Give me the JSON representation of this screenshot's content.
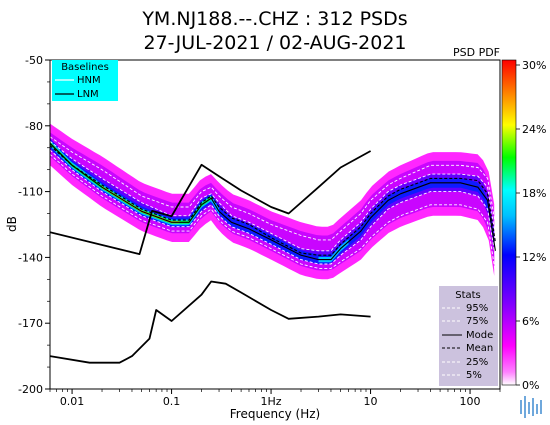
{
  "chart_data": {
    "type": "psd-pdf",
    "title": [
      "YM.NJ188.--.CHZ : 312 PSDs",
      "27-JUL-2021 / 02-AUG-2021"
    ],
    "xlabel": "Frequency (Hz)",
    "ylabel": "dB",
    "x_scale": "log",
    "xlim": [
      0.006,
      200
    ],
    "ylim": [
      -200,
      -50
    ],
    "x_ticks": [
      {
        "value": 0.01,
        "label": "0.01"
      },
      {
        "value": 0.1,
        "label": "0.1"
      },
      {
        "value": 1,
        "label": "1Hz"
      },
      {
        "value": 10,
        "label": "10"
      },
      {
        "value": 100,
        "label": "100"
      }
    ],
    "y_ticks": [
      {
        "value": -50,
        "label": "-50"
      },
      {
        "value": -80,
        "label": "-80"
      },
      {
        "value": -110,
        "label": "-110"
      },
      {
        "value": -140,
        "label": "-140"
      },
      {
        "value": -170,
        "label": "-170"
      },
      {
        "value": -200,
        "label": "-200"
      }
    ],
    "pdf_label": "PSD PDF",
    "colorbar": {
      "ticks": [
        "30%",
        "24%",
        "18%",
        "12%",
        "6%",
        "0%"
      ],
      "stops": [
        "#ffffff",
        "#ff00ff",
        "#8000ff",
        "#0000ff",
        "#00bfff",
        "#00ffff",
        "#00ff00",
        "#ffff00",
        "#ff8000",
        "#ff0000"
      ]
    },
    "baselines": {
      "title": "Baselines",
      "items": [
        "HNM",
        "LNM"
      ],
      "bg": "#00ffff"
    },
    "stats": {
      "title": "Stats",
      "items": [
        "95%",
        "75%",
        "Mode",
        "Mean",
        "25%",
        "5%"
      ],
      "bg": "#ccc2de"
    },
    "series": [
      {
        "name": "HNM",
        "points": [
          [
            0.006,
            -128.5
          ],
          [
            0.0476,
            -138.5
          ],
          [
            0.0637,
            -118.8
          ],
          [
            0.1,
            -121.2
          ],
          [
            0.2,
            -97.8
          ],
          [
            0.3,
            -103
          ],
          [
            0.5,
            -109.5
          ],
          [
            1,
            -117
          ],
          [
            1.5,
            -120
          ],
          [
            3,
            -108
          ],
          [
            5,
            -99
          ],
          [
            10,
            -91.5
          ]
        ]
      },
      {
        "name": "LNM",
        "points": [
          [
            0.006,
            -185
          ],
          [
            0.015,
            -188
          ],
          [
            0.03,
            -188
          ],
          [
            0.04,
            -185
          ],
          [
            0.06,
            -177
          ],
          [
            0.07,
            -164
          ],
          [
            0.1,
            -169
          ],
          [
            0.2,
            -157
          ],
          [
            0.25,
            -151
          ],
          [
            0.35,
            -152
          ],
          [
            0.5,
            -156
          ],
          [
            1,
            -164
          ],
          [
            1.5,
            -168
          ],
          [
            3,
            -167
          ],
          [
            5,
            -166
          ],
          [
            10,
            -167
          ]
        ]
      },
      {
        "name": "Mode",
        "points": [
          [
            0.006,
            -88
          ],
          [
            0.01,
            -98
          ],
          [
            0.02,
            -108
          ],
          [
            0.05,
            -119
          ],
          [
            0.1,
            -124
          ],
          [
            0.15,
            -124
          ],
          [
            0.2,
            -116
          ],
          [
            0.25,
            -113
          ],
          [
            0.3,
            -119
          ],
          [
            0.4,
            -124
          ],
          [
            0.6,
            -127
          ],
          [
            1,
            -132
          ],
          [
            2,
            -139
          ],
          [
            3,
            -141
          ],
          [
            4,
            -141
          ],
          [
            5,
            -136
          ],
          [
            8,
            -128
          ],
          [
            10,
            -122
          ],
          [
            15,
            -114
          ],
          [
            20,
            -111
          ],
          [
            40,
            -106
          ],
          [
            80,
            -106
          ],
          [
            120,
            -108
          ],
          [
            150,
            -114
          ],
          [
            180,
            -137
          ]
        ]
      },
      {
        "name": "Mean",
        "points": [
          [
            0.006,
            -89
          ],
          [
            0.01,
            -98
          ],
          [
            0.02,
            -107
          ],
          [
            0.05,
            -118
          ],
          [
            0.1,
            -123
          ],
          [
            0.15,
            -123
          ],
          [
            0.2,
            -115
          ],
          [
            0.25,
            -112
          ],
          [
            0.3,
            -117
          ],
          [
            0.4,
            -122
          ],
          [
            0.6,
            -125
          ],
          [
            1,
            -131
          ],
          [
            2,
            -138
          ],
          [
            3,
            -139
          ],
          [
            4,
            -139
          ],
          [
            5,
            -134
          ],
          [
            8,
            -126
          ],
          [
            10,
            -120
          ],
          [
            15,
            -112
          ],
          [
            20,
            -109
          ],
          [
            40,
            -104
          ],
          [
            80,
            -104
          ],
          [
            120,
            -105
          ],
          [
            150,
            -111
          ],
          [
            180,
            -133
          ]
        ]
      },
      {
        "name": "95%",
        "points": [
          [
            0.006,
            -85
          ],
          [
            0.01,
            -92
          ],
          [
            0.02,
            -100
          ],
          [
            0.05,
            -112
          ],
          [
            0.1,
            -117
          ],
          [
            0.15,
            -117
          ],
          [
            0.2,
            -110
          ],
          [
            0.25,
            -108
          ],
          [
            0.3,
            -112
          ],
          [
            0.4,
            -117
          ],
          [
            0.6,
            -120
          ],
          [
            1,
            -125
          ],
          [
            2,
            -130
          ],
          [
            3,
            -132
          ],
          [
            4,
            -132
          ],
          [
            5,
            -128
          ],
          [
            8,
            -120
          ],
          [
            10,
            -114
          ],
          [
            15,
            -107
          ],
          [
            20,
            -104
          ],
          [
            40,
            -98
          ],
          [
            80,
            -98
          ],
          [
            120,
            -99
          ],
          [
            150,
            -104
          ],
          [
            180,
            -125
          ]
        ]
      },
      {
        "name": "75%",
        "points": [
          [
            0.006,
            -87
          ],
          [
            0.01,
            -95
          ],
          [
            0.02,
            -104
          ],
          [
            0.05,
            -115
          ],
          [
            0.1,
            -121
          ],
          [
            0.15,
            -121
          ],
          [
            0.2,
            -113
          ],
          [
            0.25,
            -111
          ],
          [
            0.3,
            -115
          ],
          [
            0.4,
            -121
          ],
          [
            0.6,
            -124
          ],
          [
            1,
            -129
          ],
          [
            2,
            -136
          ],
          [
            3,
            -137
          ],
          [
            4,
            -137
          ],
          [
            5,
            -132
          ],
          [
            8,
            -124
          ],
          [
            10,
            -118
          ],
          [
            15,
            -110
          ],
          [
            20,
            -107
          ],
          [
            40,
            -102
          ],
          [
            80,
            -102
          ],
          [
            120,
            -103
          ],
          [
            150,
            -108
          ],
          [
            180,
            -130
          ]
        ]
      },
      {
        "name": "25%",
        "points": [
          [
            0.006,
            -91
          ],
          [
            0.01,
            -100
          ],
          [
            0.02,
            -110
          ],
          [
            0.05,
            -121
          ],
          [
            0.1,
            -126
          ],
          [
            0.15,
            -126
          ],
          [
            0.2,
            -119
          ],
          [
            0.25,
            -116
          ],
          [
            0.3,
            -121
          ],
          [
            0.4,
            -126
          ],
          [
            0.6,
            -129
          ],
          [
            1,
            -134
          ],
          [
            2,
            -141
          ],
          [
            3,
            -143
          ],
          [
            4,
            -143
          ],
          [
            5,
            -139
          ],
          [
            8,
            -132
          ],
          [
            10,
            -126
          ],
          [
            15,
            -118
          ],
          [
            20,
            -115
          ],
          [
            40,
            -110
          ],
          [
            80,
            -110
          ],
          [
            120,
            -112
          ],
          [
            150,
            -118
          ],
          [
            180,
            -140
          ]
        ]
      },
      {
        "name": "5%",
        "points": [
          [
            0.006,
            -93
          ],
          [
            0.01,
            -102
          ],
          [
            0.02,
            -112
          ],
          [
            0.05,
            -123
          ],
          [
            0.1,
            -128
          ],
          [
            0.15,
            -128
          ],
          [
            0.2,
            -121
          ],
          [
            0.25,
            -118
          ],
          [
            0.3,
            -123
          ],
          [
            0.4,
            -128
          ],
          [
            0.6,
            -131
          ],
          [
            1,
            -136
          ],
          [
            2,
            -143
          ],
          [
            3,
            -145
          ],
          [
            4,
            -145
          ],
          [
            5,
            -142
          ],
          [
            8,
            -136
          ],
          [
            10,
            -131
          ],
          [
            15,
            -124
          ],
          [
            20,
            -121
          ],
          [
            40,
            -116
          ],
          [
            80,
            -116
          ],
          [
            120,
            -118
          ],
          [
            150,
            -124
          ],
          [
            180,
            -147
          ]
        ]
      }
    ],
    "grid": false
  }
}
